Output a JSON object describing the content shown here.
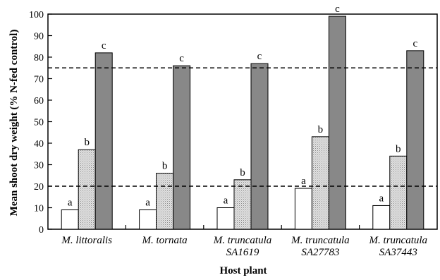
{
  "chart_data": {
    "type": "bar",
    "xlabel": "Host plant",
    "ylabel": "Mean shoot dry weight (% N-fed control)",
    "ylim": [
      0,
      100
    ],
    "yticks": [
      0,
      10,
      20,
      30,
      40,
      50,
      60,
      70,
      80,
      90,
      100
    ],
    "grid": false,
    "categories": [
      [
        "M. littoralis"
      ],
      [
        "M. tornata"
      ],
      [
        "M. truncatula",
        "SA1619"
      ],
      [
        "M. truncatula",
        "SA27783"
      ],
      [
        "M. truncatula",
        "SA37443"
      ]
    ],
    "series": [
      {
        "fill": "#ffffff",
        "pattern": "none",
        "values": [
          9,
          9,
          10,
          19,
          11
        ],
        "letters": [
          "a",
          "a",
          "a",
          "a",
          "a"
        ]
      },
      {
        "fill": "#d4d4d4",
        "pattern": "stipple",
        "values": [
          37,
          26,
          23,
          43,
          34
        ],
        "letters": [
          "b",
          "b",
          "b",
          "b",
          "b"
        ]
      },
      {
        "fill": "#888888",
        "pattern": "none",
        "values": [
          82,
          76,
          77,
          99,
          83
        ],
        "letters": [
          "c",
          "c",
          "c",
          "c",
          "c"
        ]
      }
    ],
    "reference_lines": [
      20,
      75
    ]
  }
}
